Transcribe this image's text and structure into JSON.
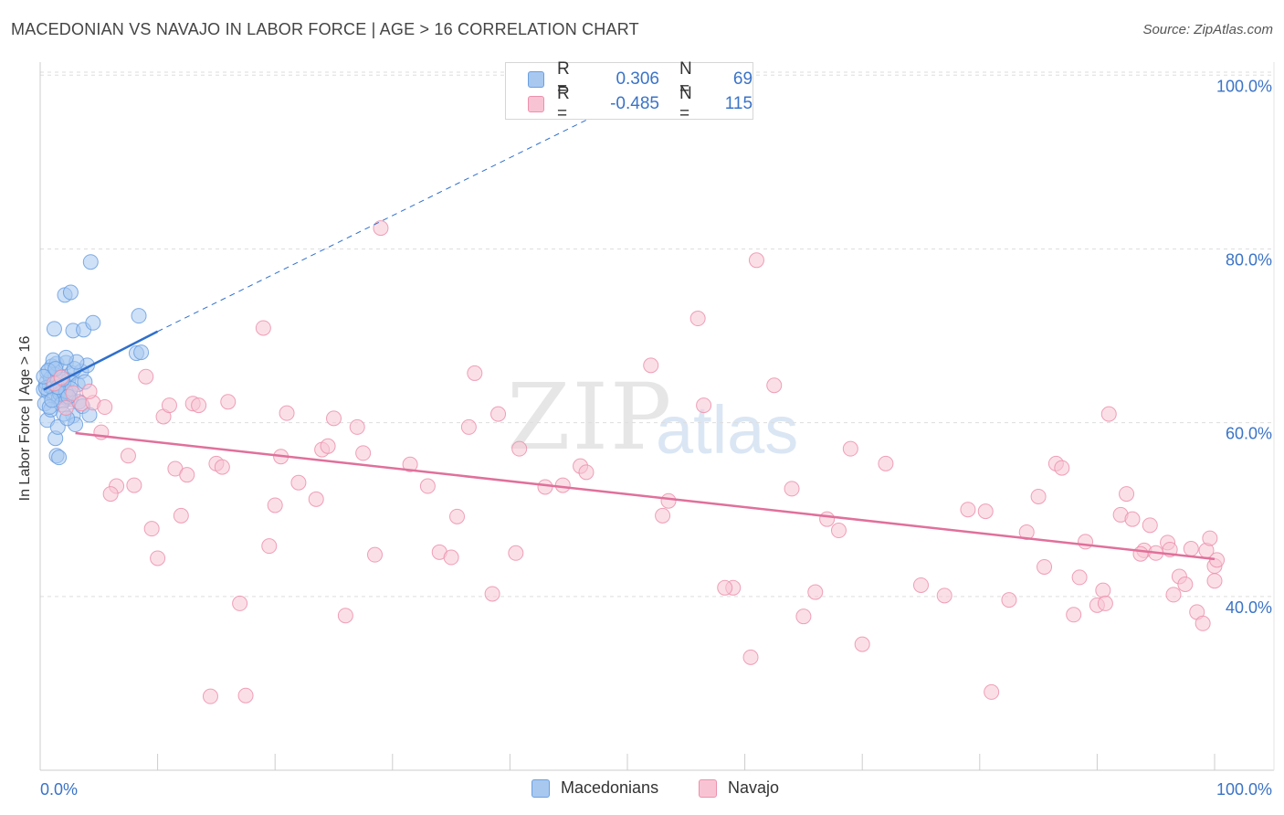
{
  "title": "MACEDONIAN VS NAVAJO IN LABOR FORCE | AGE > 16 CORRELATION CHART",
  "source": "Source: ZipAtlas.com",
  "watermark": {
    "zip": "ZIP",
    "atlas": "atlas"
  },
  "legend": {
    "r_label": "R =",
    "n_label": "N =",
    "macedonians": {
      "r": "0.306",
      "n": "69"
    },
    "navajo": {
      "r": "-0.485",
      "n": "115"
    }
  },
  "colors": {
    "blue_fill": "#a8c8f0",
    "blue_stroke": "#6a9fe0",
    "blue_line": "#2f6fcc",
    "pink_fill": "#f8c4d4",
    "pink_stroke": "#ec90ad",
    "pink_line": "#e0709a",
    "tick_label": "#3a73c7",
    "grid": "#dddddd"
  },
  "chart_data": {
    "type": "scatter",
    "title": "MACEDONIAN VS NAVAJO IN LABOR FORCE | AGE > 16 CORRELATION CHART",
    "xlabel": "",
    "ylabel": "In Labor Force | Age > 16",
    "xlim": [
      0,
      100
    ],
    "ylim": [
      20,
      101.5
    ],
    "x_tick_labels": [
      "0.0%",
      "100.0%"
    ],
    "y_ticks": [
      40,
      60,
      80,
      100
    ],
    "y_tick_labels": [
      "40.0%",
      "60.0%",
      "80.0%",
      "100.0%"
    ],
    "grid": true,
    "legend_position": "bottom",
    "series": [
      {
        "name": "Macedonians",
        "r": 0.306,
        "n": 69,
        "trend": {
          "x0": 0.3,
          "y0": 63.8,
          "x1": 10,
          "y1": 70.5,
          "dash_x1": 55,
          "dash_y1": 100.5
        },
        "points": [
          [
            0.3,
            63.8
          ],
          [
            0.5,
            64.6
          ],
          [
            0.6,
            65.8
          ],
          [
            0.7,
            63.5
          ],
          [
            0.8,
            64.2
          ],
          [
            0.9,
            65.1
          ],
          [
            1.0,
            66.5
          ],
          [
            1.1,
            64.0
          ],
          [
            1.2,
            63.0
          ],
          [
            1.3,
            65.5
          ],
          [
            1.4,
            66.8
          ],
          [
            1.5,
            64.8
          ],
          [
            1.6,
            62.9
          ],
          [
            1.7,
            63.7
          ],
          [
            1.8,
            65.2
          ],
          [
            1.9,
            62.5
          ],
          [
            2.0,
            64.3
          ],
          [
            2.1,
            63.1
          ],
          [
            2.2,
            66.9
          ],
          [
            2.3,
            62.8
          ],
          [
            2.4,
            64.9
          ],
          [
            2.5,
            63.4
          ],
          [
            2.6,
            62.7
          ],
          [
            2.7,
            65.7
          ],
          [
            2.8,
            60.8
          ],
          [
            3.0,
            59.8
          ],
          [
            3.2,
            64.4
          ],
          [
            3.5,
            65.9
          ],
          [
            3.8,
            64.7
          ],
          [
            4.0,
            66.6
          ],
          [
            0.4,
            62.2
          ],
          [
            0.6,
            60.3
          ],
          [
            0.9,
            61.5
          ],
          [
            1.1,
            67.2
          ],
          [
            1.3,
            58.2
          ],
          [
            1.4,
            56.2
          ],
          [
            1.5,
            59.5
          ],
          [
            1.7,
            63.3
          ],
          [
            1.8,
            62.1
          ],
          [
            2.0,
            61.0
          ],
          [
            2.2,
            63.6
          ],
          [
            2.3,
            60.5
          ],
          [
            2.6,
            63.9
          ],
          [
            2.9,
            66.2
          ],
          [
            3.1,
            67.0
          ],
          [
            3.3,
            62.4
          ],
          [
            3.6,
            61.9
          ],
          [
            4.2,
            60.9
          ],
          [
            1.6,
            56.0
          ],
          [
            0.8,
            61.8
          ],
          [
            1.2,
            70.8
          ],
          [
            2.1,
            74.7
          ],
          [
            2.6,
            75.0
          ],
          [
            2.8,
            70.6
          ],
          [
            3.7,
            70.7
          ],
          [
            4.5,
            71.5
          ],
          [
            4.3,
            78.5
          ],
          [
            8.2,
            68.0
          ],
          [
            8.4,
            72.3
          ],
          [
            8.6,
            68.1
          ],
          [
            0.5,
            64.0
          ],
          [
            0.7,
            66.0
          ],
          [
            1.0,
            62.6
          ],
          [
            1.5,
            64.1
          ],
          [
            1.9,
            65.0
          ],
          [
            2.4,
            63.0
          ],
          [
            0.3,
            65.3
          ],
          [
            1.3,
            66.2
          ],
          [
            2.2,
            67.5
          ]
        ]
      },
      {
        "name": "Navajo",
        "r": -0.485,
        "n": 115,
        "trend": {
          "x0": 3,
          "y0": 58.8,
          "x1": 100,
          "y1": 44.3
        },
        "points": [
          [
            1.2,
            64.5
          ],
          [
            1.8,
            65.2
          ],
          [
            2.2,
            61.7
          ],
          [
            2.8,
            63.4
          ],
          [
            3.5,
            62.2
          ],
          [
            4.5,
            62.3
          ],
          [
            4.2,
            63.6
          ],
          [
            5.5,
            61.8
          ],
          [
            5.2,
            58.9
          ],
          [
            6.5,
            52.7
          ],
          [
            6.0,
            51.8
          ],
          [
            7.5,
            56.2
          ],
          [
            8.0,
            52.8
          ],
          [
            9.0,
            65.3
          ],
          [
            9.5,
            47.8
          ],
          [
            10.0,
            44.4
          ],
          [
            10.5,
            60.7
          ],
          [
            11.0,
            62.0
          ],
          [
            11.5,
            54.7
          ],
          [
            12.0,
            49.3
          ],
          [
            12.5,
            54.0
          ],
          [
            13.0,
            62.2
          ],
          [
            13.5,
            62.0
          ],
          [
            14.5,
            28.5
          ],
          [
            15.0,
            55.3
          ],
          [
            15.5,
            54.9
          ],
          [
            16.0,
            62.4
          ],
          [
            17.0,
            39.2
          ],
          [
            17.5,
            28.6
          ],
          [
            19.0,
            70.9
          ],
          [
            19.5,
            45.8
          ],
          [
            20.0,
            50.5
          ],
          [
            20.5,
            56.1
          ],
          [
            21.0,
            61.1
          ],
          [
            22.0,
            53.1
          ],
          [
            23.5,
            51.2
          ],
          [
            24.0,
            56.9
          ],
          [
            24.5,
            57.3
          ],
          [
            25.0,
            60.5
          ],
          [
            26.0,
            37.8
          ],
          [
            27.0,
            59.5
          ],
          [
            27.5,
            56.5
          ],
          [
            28.5,
            44.8
          ],
          [
            29.0,
            82.4
          ],
          [
            31.5,
            55.2
          ],
          [
            33.0,
            52.7
          ],
          [
            34.0,
            45.1
          ],
          [
            35.0,
            44.5
          ],
          [
            35.5,
            49.2
          ],
          [
            36.5,
            59.5
          ],
          [
            37.0,
            65.7
          ],
          [
            38.5,
            40.3
          ],
          [
            39.0,
            61.0
          ],
          [
            40.5,
            45.0
          ],
          [
            40.8,
            57.0
          ],
          [
            43.0,
            52.6
          ],
          [
            44.5,
            52.8
          ],
          [
            46.0,
            55.0
          ],
          [
            46.5,
            54.3
          ],
          [
            52.0,
            66.6
          ],
          [
            53.0,
            49.3
          ],
          [
            53.5,
            51.0
          ],
          [
            56.0,
            72.0
          ],
          [
            56.5,
            62.0
          ],
          [
            59.0,
            41.0
          ],
          [
            60.5,
            33.0
          ],
          [
            61.0,
            78.7
          ],
          [
            62.5,
            64.3
          ],
          [
            64.0,
            52.4
          ],
          [
            65.0,
            37.7
          ],
          [
            66.0,
            40.5
          ],
          [
            67.0,
            48.9
          ],
          [
            68.0,
            47.6
          ],
          [
            69.0,
            57.0
          ],
          [
            70.0,
            34.5
          ],
          [
            72.0,
            55.3
          ],
          [
            75.0,
            41.3
          ],
          [
            77.0,
            40.1
          ],
          [
            79.0,
            50.0
          ],
          [
            80.5,
            49.8
          ],
          [
            81.0,
            29.0
          ],
          [
            82.5,
            39.6
          ],
          [
            84.0,
            47.4
          ],
          [
            85.0,
            51.5
          ],
          [
            85.5,
            43.4
          ],
          [
            86.5,
            55.3
          ],
          [
            87.0,
            54.8
          ],
          [
            88.0,
            37.9
          ],
          [
            88.5,
            42.2
          ],
          [
            89.0,
            46.3
          ],
          [
            90.0,
            39.0
          ],
          [
            90.5,
            40.7
          ],
          [
            91.0,
            61.0
          ],
          [
            92.0,
            49.4
          ],
          [
            92.5,
            51.8
          ],
          [
            93.0,
            48.9
          ],
          [
            94.0,
            45.3
          ],
          [
            94.5,
            48.2
          ],
          [
            95.0,
            45.0
          ],
          [
            96.0,
            46.2
          ],
          [
            96.5,
            40.2
          ],
          [
            97.0,
            42.3
          ],
          [
            97.5,
            41.4
          ],
          [
            98.0,
            45.5
          ],
          [
            98.5,
            38.2
          ],
          [
            99.0,
            36.9
          ],
          [
            99.3,
            45.3
          ],
          [
            99.6,
            46.7
          ],
          [
            100.0,
            43.5
          ],
          [
            100.2,
            44.2
          ],
          [
            100.0,
            41.8
          ],
          [
            96.2,
            45.4
          ],
          [
            93.7,
            44.9
          ],
          [
            90.7,
            39.2
          ],
          [
            58.3,
            41.0
          ]
        ]
      }
    ],
    "legend": [
      "Macedonians",
      "Navajo"
    ]
  }
}
